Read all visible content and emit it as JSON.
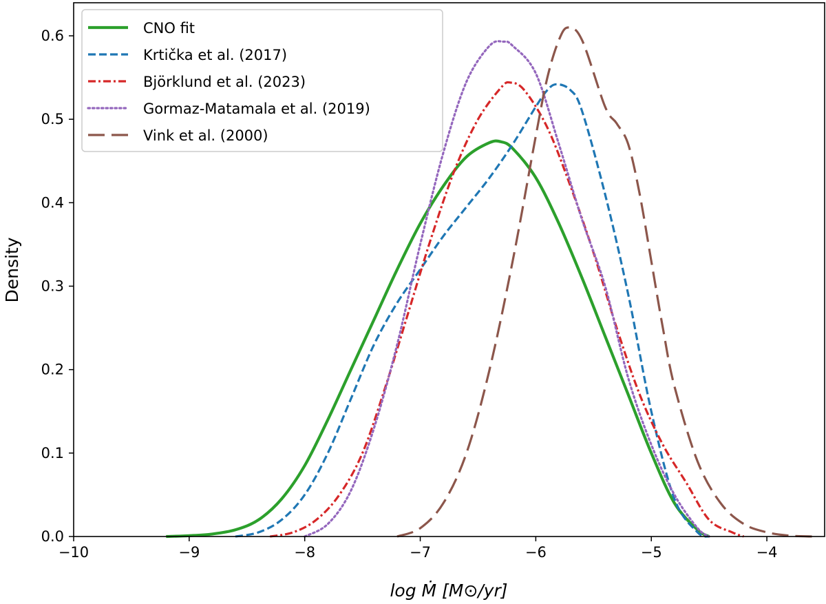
{
  "chart_data": {
    "type": "line",
    "title": "",
    "xlabel": "log Ṁ [M⊙/yr]",
    "ylabel": "Density",
    "xlim": [
      -10,
      -3.5
    ],
    "ylim": [
      0,
      0.63
    ],
    "xticks": [
      -10,
      -9,
      -8,
      -7,
      -6,
      -5,
      -4
    ],
    "xtick_labels": [
      "−10",
      "−9",
      "−8",
      "−7",
      "−6",
      "−5",
      "−4"
    ],
    "yticks": [
      0.0,
      0.1,
      0.2,
      0.3,
      0.4,
      0.5,
      0.6
    ],
    "ytick_labels": [
      "0.0",
      "0.1",
      "0.2",
      "0.3",
      "0.4",
      "0.5",
      "0.6"
    ],
    "grid": false,
    "legend_position": "top-left",
    "series": [
      {
        "name": "CNO fit",
        "color": "#2ca02c",
        "style": "solid",
        "x": [
          -9.2,
          -9.0,
          -8.8,
          -8.6,
          -8.4,
          -8.2,
          -8.0,
          -7.8,
          -7.6,
          -7.4,
          -7.2,
          -7.0,
          -6.8,
          -6.6,
          -6.4,
          -6.3,
          -6.2,
          -6.0,
          -5.8,
          -5.6,
          -5.4,
          -5.2,
          -5.0,
          -4.8,
          -4.6,
          -4.5
        ],
        "y": [
          0.0,
          0.001,
          0.003,
          0.008,
          0.02,
          0.045,
          0.085,
          0.14,
          0.2,
          0.26,
          0.32,
          0.375,
          0.42,
          0.455,
          0.472,
          0.473,
          0.465,
          0.43,
          0.375,
          0.31,
          0.24,
          0.17,
          0.1,
          0.04,
          0.008,
          0.0
        ]
      },
      {
        "name": "Krtička et al. (2017)",
        "color": "#1f77b4",
        "style": "dashed",
        "x": [
          -8.6,
          -8.4,
          -8.2,
          -8.0,
          -7.8,
          -7.6,
          -7.4,
          -7.2,
          -7.0,
          -6.8,
          -6.6,
          -6.4,
          -6.2,
          -6.0,
          -5.9,
          -5.82,
          -5.7,
          -5.6,
          -5.4,
          -5.2,
          -5.0,
          -4.8,
          -4.6,
          -4.5
        ],
        "y": [
          0.0,
          0.005,
          0.02,
          0.05,
          0.1,
          0.165,
          0.23,
          0.28,
          0.32,
          0.36,
          0.395,
          0.43,
          0.47,
          0.515,
          0.535,
          0.542,
          0.535,
          0.51,
          0.41,
          0.29,
          0.15,
          0.045,
          0.005,
          0.0
        ]
      },
      {
        "name": "Björklund et al. (2023)",
        "color": "#d62728",
        "style": "dashdot",
        "x": [
          -8.3,
          -8.1,
          -7.9,
          -7.7,
          -7.5,
          -7.3,
          -7.1,
          -6.9,
          -6.7,
          -6.5,
          -6.3,
          -6.22,
          -6.1,
          -5.9,
          -5.7,
          -5.5,
          -5.3,
          -5.1,
          -4.9,
          -4.7,
          -4.5,
          -4.3,
          -4.2
        ],
        "y": [
          0.0,
          0.005,
          0.02,
          0.05,
          0.1,
          0.18,
          0.27,
          0.36,
          0.44,
          0.5,
          0.538,
          0.544,
          0.535,
          0.49,
          0.42,
          0.34,
          0.25,
          0.17,
          0.11,
          0.065,
          0.02,
          0.005,
          0.0
        ]
      },
      {
        "name": "Gormaz-Matamala et al. (2019)",
        "color": "#9467bd",
        "style": "dotted",
        "x": [
          -8.0,
          -7.8,
          -7.6,
          -7.4,
          -7.2,
          -7.0,
          -6.8,
          -6.6,
          -6.4,
          -6.28,
          -6.2,
          -6.0,
          -5.8,
          -5.6,
          -5.4,
          -5.2,
          -5.0,
          -4.8,
          -4.6,
          -4.5
        ],
        "y": [
          0.0,
          0.015,
          0.055,
          0.13,
          0.23,
          0.35,
          0.46,
          0.545,
          0.588,
          0.593,
          0.588,
          0.555,
          0.47,
          0.38,
          0.3,
          0.19,
          0.11,
          0.05,
          0.01,
          0.0
        ]
      },
      {
        "name": "Vink et al. (2000)",
        "color": "#8c564b",
        "style": "longdash",
        "x": [
          -7.2,
          -7.0,
          -6.8,
          -6.6,
          -6.4,
          -6.2,
          -6.0,
          -5.9,
          -5.8,
          -5.72,
          -5.6,
          -5.4,
          -5.3,
          -5.2,
          -5.1,
          -5.0,
          -4.9,
          -4.8,
          -4.6,
          -4.4,
          -4.2,
          -4.0,
          -3.8,
          -3.6
        ],
        "y": [
          0.0,
          0.01,
          0.04,
          0.1,
          0.2,
          0.33,
          0.48,
          0.55,
          0.595,
          0.61,
          0.595,
          0.515,
          0.495,
          0.47,
          0.41,
          0.33,
          0.25,
          0.18,
          0.09,
          0.04,
          0.015,
          0.005,
          0.001,
          0.0
        ]
      }
    ]
  }
}
